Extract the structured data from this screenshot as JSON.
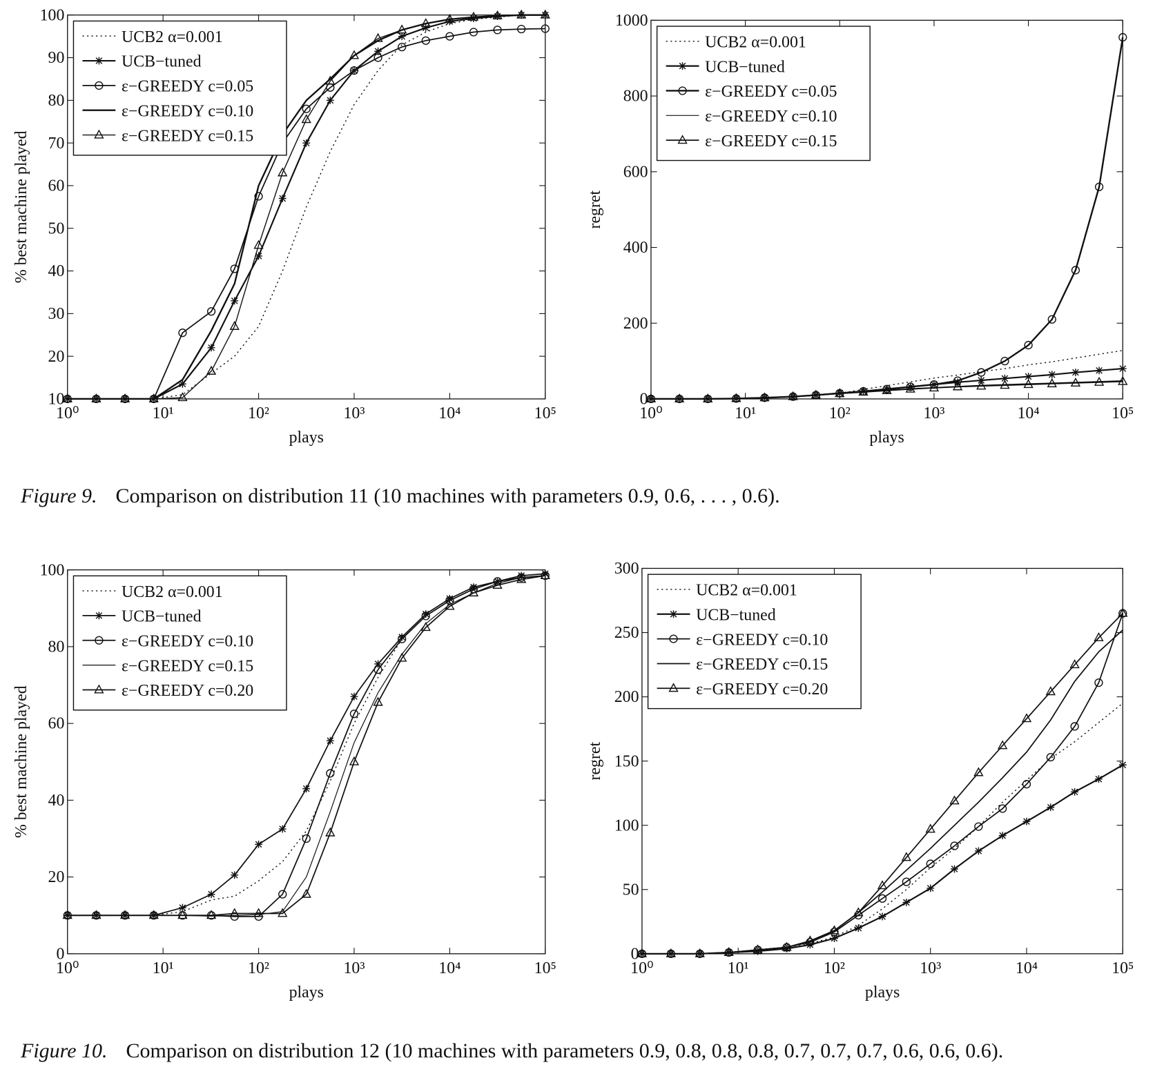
{
  "chart_data": [
    {
      "type": "line",
      "ylabel": "% best machine played",
      "xlabel": "plays",
      "xscale": "log",
      "legend": "upper left",
      "x": [
        1,
        2,
        4,
        8,
        16,
        32,
        56,
        100,
        178,
        316,
        562,
        1000,
        1778,
        3162,
        5623,
        10000,
        17783,
        31623,
        56234,
        100000
      ],
      "xlim": [
        1,
        100000
      ],
      "xticks": [
        {
          "value": 1,
          "label": "10⁰"
        },
        {
          "value": 10,
          "label": "10¹"
        },
        {
          "value": 100,
          "label": "10²"
        },
        {
          "value": 1000,
          "label": "10³"
        },
        {
          "value": 10000,
          "label": "10⁴"
        },
        {
          "value": 100000,
          "label": "10⁵"
        }
      ],
      "ylim": [
        10,
        100
      ],
      "yticks": [
        10,
        20,
        30,
        40,
        50,
        60,
        70,
        80,
        90,
        100
      ],
      "series": [
        {
          "name": "UCB2 α=0.001",
          "color": "#111111",
          "line": "dotted",
          "marker": "none",
          "linewidth": 1.3,
          "values": [
            10,
            10,
            10,
            10,
            11,
            16,
            20,
            27,
            40,
            55,
            68,
            79,
            87,
            93,
            96,
            98,
            99,
            99.5,
            100,
            100
          ]
        },
        {
          "name": "UCB−tuned",
          "color": "#111111",
          "line": "solid",
          "marker": "star",
          "linewidth": 2,
          "values": [
            10,
            10,
            10,
            10,
            13.5,
            22,
            33,
            43.5,
            57,
            70,
            80,
            87,
            91.5,
            95,
            97,
            98.5,
            99.2,
            99.7,
            100,
            100
          ]
        },
        {
          "name": "ε−GREEDY c=0.05",
          "color": "#111111",
          "line": "solid",
          "marker": "circle",
          "linewidth": 1.6,
          "values": [
            10,
            10,
            10,
            10,
            25.5,
            30.5,
            40.5,
            57.5,
            70,
            78,
            83,
            87,
            90,
            92.5,
            94,
            95,
            96,
            96.5,
            96.7,
            96.8
          ]
        },
        {
          "name": "ε−GREEDY c=0.10",
          "color": "#111111",
          "line": "solid",
          "marker": "none",
          "linewidth": 2.2,
          "values": [
            10,
            10,
            10,
            10,
            14.5,
            26,
            37,
            60,
            72,
            80,
            85,
            90.5,
            94,
            96.5,
            98,
            99,
            99.5,
            99.8,
            100,
            100
          ]
        },
        {
          "name": "ε−GREEDY c=0.15",
          "color": "#111111",
          "line": "solid",
          "marker": "triangle",
          "linewidth": 1.3,
          "values": [
            10,
            10,
            10,
            10,
            10.3,
            16.5,
            27,
            46,
            63,
            75.5,
            84.5,
            90.5,
            94.5,
            96.5,
            98,
            99,
            99.5,
            99.8,
            100,
            100
          ]
        }
      ]
    },
    {
      "type": "line",
      "ylabel": "regret",
      "xlabel": "plays",
      "xscale": "log",
      "legend": "upper left",
      "x": [
        1,
        2,
        4,
        8,
        16,
        32,
        56,
        100,
        178,
        316,
        562,
        1000,
        1778,
        3162,
        5623,
        10000,
        17783,
        31623,
        56234,
        100000
      ],
      "xlim": [
        1,
        100000
      ],
      "xticks": [
        {
          "value": 1,
          "label": "10⁰"
        },
        {
          "value": 10,
          "label": "10¹"
        },
        {
          "value": 100,
          "label": "10²"
        },
        {
          "value": 1000,
          "label": "10³"
        },
        {
          "value": 10000,
          "label": "10⁴"
        },
        {
          "value": 100000,
          "label": "10⁵"
        }
      ],
      "ylim": [
        0,
        1000
      ],
      "yticks": [
        0,
        200,
        400,
        600,
        800,
        1000
      ],
      "series": [
        {
          "name": "UCB2 α=0.001",
          "color": "#111111",
          "line": "dotted",
          "marker": "none",
          "linewidth": 1.3,
          "values": [
            0,
            0,
            0,
            1,
            3,
            6,
            10,
            15,
            25,
            35,
            45,
            55,
            63,
            72,
            80,
            90,
            98,
            108,
            118,
            128
          ]
        },
        {
          "name": "UCB−tuned",
          "color": "#111111",
          "line": "solid",
          "marker": "star",
          "linewidth": 2,
          "values": [
            0,
            0,
            0,
            1,
            3,
            6,
            10,
            15,
            20,
            25,
            32,
            38,
            44,
            49,
            54,
            59,
            64,
            70,
            75,
            80
          ]
        },
        {
          "name": "ε−GREEDY c=0.05",
          "color": "#111111",
          "line": "solid",
          "marker": "circle",
          "linewidth": 2.2,
          "values": [
            0,
            0,
            0,
            1,
            3,
            6,
            10,
            15,
            20,
            26,
            32,
            38,
            48,
            70,
            100,
            142,
            210,
            340,
            560,
            955
          ]
        },
        {
          "name": "ε−GREEDY c=0.10",
          "color": "#111111",
          "line": "solid",
          "marker": "none",
          "linewidth": 1.1,
          "values": [
            0,
            0,
            0,
            1,
            3,
            6,
            10,
            14,
            19,
            23,
            27,
            30,
            33,
            36,
            38,
            40,
            42,
            44,
            46,
            48
          ]
        },
        {
          "name": "ε−GREEDY c=0.15",
          "color": "#111111",
          "line": "solid",
          "marker": "triangle",
          "linewidth": 1.6,
          "values": [
            0,
            0,
            0,
            1,
            3,
            6,
            10,
            14,
            18,
            22,
            26,
            29,
            32,
            34,
            36,
            38,
            40,
            42,
            44,
            46
          ]
        }
      ]
    },
    {
      "type": "line",
      "ylabel": "% best machine played",
      "xlabel": "plays",
      "xscale": "log",
      "legend": "upper left",
      "x": [
        1,
        2,
        4,
        8,
        16,
        32,
        56,
        100,
        178,
        316,
        562,
        1000,
        1778,
        3162,
        5623,
        10000,
        17783,
        31623,
        56234,
        100000
      ],
      "xlim": [
        1,
        100000
      ],
      "xticks": [
        {
          "value": 1,
          "label": "10⁰"
        },
        {
          "value": 10,
          "label": "10¹"
        },
        {
          "value": 100,
          "label": "10²"
        },
        {
          "value": 1000,
          "label": "10³"
        },
        {
          "value": 10000,
          "label": "10⁴"
        },
        {
          "value": 100000,
          "label": "10⁵"
        }
      ],
      "ylim": [
        0,
        100
      ],
      "yticks": [
        0,
        20,
        40,
        60,
        80,
        100
      ],
      "series": [
        {
          "name": "UCB2 α=0.001",
          "color": "#111111",
          "line": "dotted",
          "marker": "none",
          "linewidth": 1.3,
          "values": [
            10,
            10,
            10,
            10,
            11,
            14,
            15,
            19,
            24,
            32,
            45,
            60,
            72,
            82,
            88,
            92,
            95,
            97,
            98,
            98.5
          ]
        },
        {
          "name": "UCB−tuned",
          "color": "#111111",
          "line": "solid",
          "marker": "star",
          "linewidth": 1.6,
          "values": [
            10,
            10,
            10,
            10,
            12,
            15.5,
            20.5,
            28.5,
            32.5,
            43,
            55.5,
            67,
            75.5,
            82.5,
            88.5,
            92.5,
            95.5,
            97,
            98.5,
            99
          ]
        },
        {
          "name": "ε−GREEDY c=0.10",
          "color": "#111111",
          "line": "solid",
          "marker": "circle",
          "linewidth": 1.6,
          "values": [
            10,
            10,
            10,
            10,
            10,
            10,
            9.7,
            9.7,
            15.5,
            30,
            47,
            62.5,
            74,
            82,
            88,
            92,
            95,
            97,
            98,
            98.5
          ]
        },
        {
          "name": "ε−GREEDY c=0.15",
          "color": "#111111",
          "line": "solid",
          "marker": "none",
          "linewidth": 1.1,
          "values": [
            10,
            10,
            10,
            10,
            10,
            9.8,
            10,
            10.2,
            11,
            20,
            37,
            55,
            68,
            78,
            86,
            91,
            94,
            96.5,
            98,
            98.5
          ]
        },
        {
          "name": "ε−GREEDY c=0.20",
          "color": "#111111",
          "line": "solid",
          "marker": "triangle",
          "linewidth": 1.6,
          "values": [
            10,
            10,
            10,
            10,
            10,
            10,
            10.5,
            10.5,
            10.5,
            15.5,
            31.5,
            50,
            65.5,
            77,
            85,
            90.5,
            94,
            96,
            97.5,
            98.5
          ]
        }
      ]
    },
    {
      "type": "line",
      "ylabel": "regret",
      "xlabel": "plays",
      "xscale": "log",
      "legend": "upper left",
      "x": [
        1,
        2,
        4,
        8,
        16,
        32,
        56,
        100,
        178,
        316,
        562,
        1000,
        1778,
        3162,
        5623,
        10000,
        17783,
        31623,
        56234,
        100000
      ],
      "xlim": [
        1,
        100000
      ],
      "xticks": [
        {
          "value": 1,
          "label": "10⁰"
        },
        {
          "value": 10,
          "label": "10¹"
        },
        {
          "value": 100,
          "label": "10²"
        },
        {
          "value": 1000,
          "label": "10³"
        },
        {
          "value": 10000,
          "label": "10⁴"
        },
        {
          "value": 100000,
          "label": "10⁵"
        }
      ],
      "ylim": [
        0,
        300
      ],
      "yticks": [
        0,
        50,
        100,
        150,
        200,
        250,
        300
      ],
      "series": [
        {
          "name": "UCB2 α=0.001",
          "color": "#111111",
          "line": "dotted",
          "marker": "none",
          "linewidth": 1.3,
          "values": [
            0,
            0,
            0,
            1,
            2,
            4,
            8,
            13,
            22,
            35,
            50,
            67,
            82,
            99,
            118,
            135,
            152,
            165,
            180,
            195
          ]
        },
        {
          "name": "UCB−tuned",
          "color": "#111111",
          "line": "solid",
          "marker": "star",
          "linewidth": 2,
          "values": [
            0,
            0,
            0,
            1,
            2,
            4,
            7,
            12,
            20,
            29,
            40,
            51,
            66,
            80,
            92,
            103,
            114,
            126,
            136,
            147
          ]
        },
        {
          "name": "ε−GREEDY c=0.10",
          "color": "#111111",
          "line": "solid",
          "marker": "circle",
          "linewidth": 1.6,
          "values": [
            0,
            0,
            0,
            1,
            3,
            5,
            9,
            17,
            30,
            43,
            56,
            70,
            84,
            99,
            113,
            132,
            153,
            177,
            211,
            265
          ]
        },
        {
          "name": "ε−GREEDY c=0.15",
          "color": "#111111",
          "line": "solid",
          "marker": "none",
          "linewidth": 1.6,
          "values": [
            0,
            0,
            0,
            1,
            3,
            5,
            10,
            18,
            32,
            48,
            65,
            82,
            100,
            118,
            137,
            157,
            182,
            212,
            235,
            252
          ]
        },
        {
          "name": "ε−GREEDY c=0.20",
          "color": "#111111",
          "line": "solid",
          "marker": "triangle",
          "linewidth": 1.6,
          "values": [
            0,
            0,
            0,
            1,
            3,
            5,
            10,
            18,
            32,
            53,
            75,
            97,
            119,
            141,
            162,
            183,
            204,
            225,
            246,
            265
          ]
        }
      ]
    }
  ],
  "captions": [
    {
      "label": "Figure 9.",
      "text": "Comparison on distribution 11 (10 machines with parameters 0.9, 0.6, . . . , 0.6)."
    },
    {
      "label": "Figure 10.",
      "text": "Comparison on distribution 12 (10 machines with parameters 0.9, 0.8, 0.8, 0.8, 0.7, 0.7, 0.7, 0.6, 0.6, 0.6)."
    }
  ]
}
